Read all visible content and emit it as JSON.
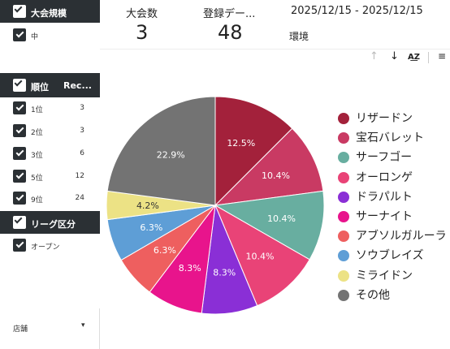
{
  "sidebar": {
    "sections": [
      {
        "label": "大会規模",
        "extra": "",
        "items": [
          {
            "label": "中",
            "count": ""
          }
        ]
      },
      {
        "label": "順位",
        "extra": "Rec...",
        "items": [
          {
            "label": "1位",
            "count": "3"
          },
          {
            "label": "2位",
            "count": "3"
          },
          {
            "label": "3位",
            "count": "6"
          },
          {
            "label": "5位",
            "count": "12"
          },
          {
            "label": "9位",
            "count": "24"
          }
        ]
      },
      {
        "label": "リーグ区分",
        "extra": "",
        "items": [
          {
            "label": "オープン",
            "count": ""
          }
        ]
      }
    ],
    "store_label": "店舗"
  },
  "header": {
    "kpi1_label": "大会数",
    "kpi1_value": "3",
    "kpi2_label": "登録デー...",
    "kpi2_value": "48",
    "date_range": "2025/12/15 - 2025/12/15",
    "env_label": "環境"
  },
  "toolbar": {
    "icons": [
      "arrow-up-icon",
      "arrow-down-icon",
      "sort-az-icon",
      "filter-icon"
    ]
  },
  "chart_data": {
    "type": "pie",
    "legend_position": "right",
    "slices": [
      {
        "label": "リザードン",
        "value": 12.5,
        "display": "12.5%",
        "color": "#a3213b"
      },
      {
        "label": "宝石バレット",
        "value": 10.4,
        "display": "10.4%",
        "color": "#c93a63"
      },
      {
        "label": "サーフゴー",
        "value": 10.4,
        "display": "10.4%",
        "color": "#68aea0"
      },
      {
        "label": "オーロンゲ",
        "value": 10.4,
        "display": "10.4%",
        "color": "#e94377"
      },
      {
        "label": "ドラパルト",
        "value": 8.3,
        "display": "8.3%",
        "color": "#8a2fd6"
      },
      {
        "label": "サーナイト",
        "value": 8.3,
        "display": "8.3%",
        "color": "#e8148c"
      },
      {
        "label": "アブソルガルーラ",
        "value": 6.3,
        "display": "6.3%",
        "color": "#ee5f5f"
      },
      {
        "label": "ソウブレイズ",
        "value": 6.3,
        "display": "6.3%",
        "color": "#5e9ed6"
      },
      {
        "label": "ミライドン",
        "value": 4.2,
        "display": "4.2%",
        "color": "#ece285"
      },
      {
        "label": "その他",
        "value": 22.9,
        "display": "22.9%",
        "color": "#737373"
      }
    ]
  }
}
